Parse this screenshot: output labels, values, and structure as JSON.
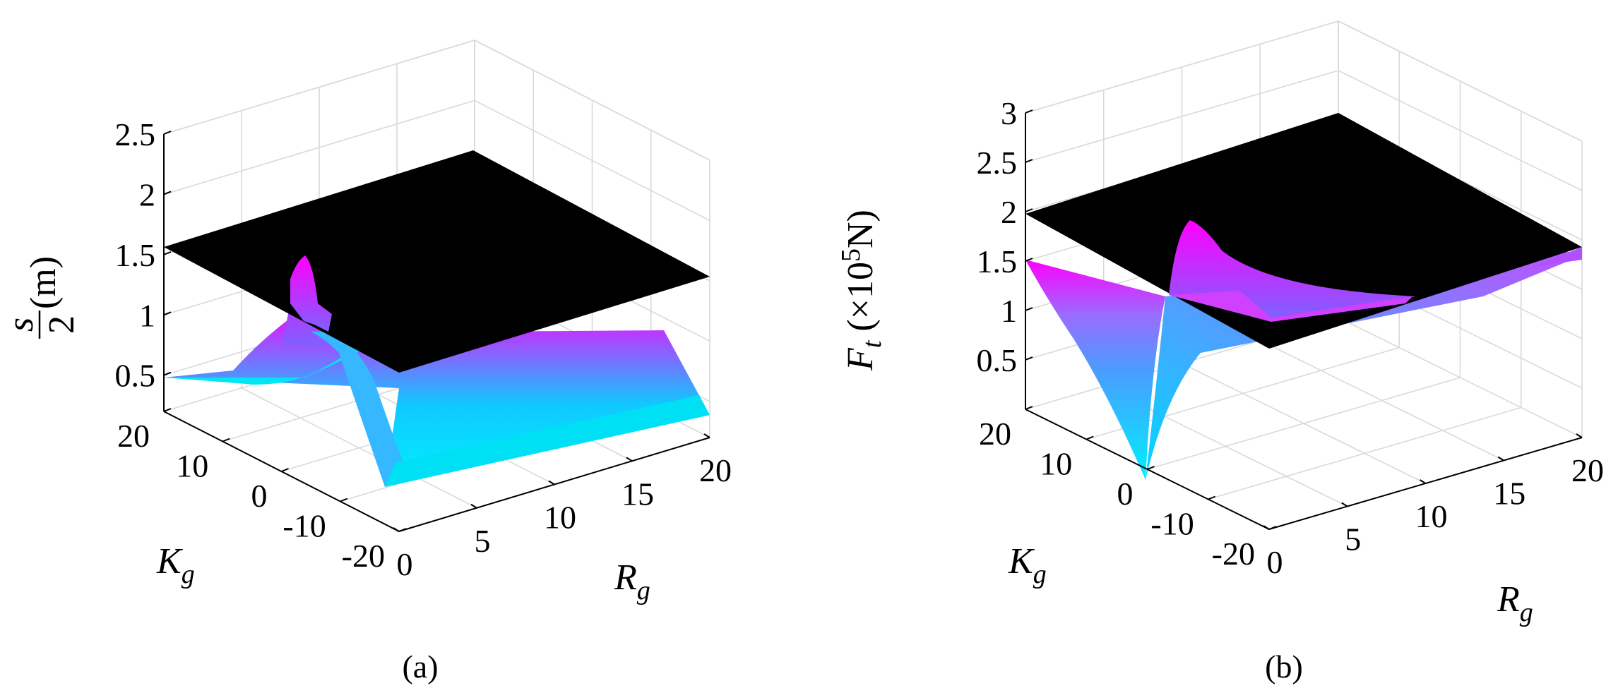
{
  "chart_data": [
    {
      "id": "a",
      "type": "surface3d",
      "caption": "(a)",
      "zlabel_fraction": {
        "numerator": "s",
        "denominator": "2"
      },
      "zlabel_unit": "(m)",
      "xlabel": {
        "main": "R",
        "sub": "g"
      },
      "ylabel": {
        "main": "K",
        "sub": "g"
      },
      "xlim": [
        0,
        20
      ],
      "ylim": [
        -20,
        20
      ],
      "zlim": [
        0.2,
        2.5
      ],
      "x_ticks": [
        "0",
        "5",
        "10",
        "15",
        "20"
      ],
      "y_ticks": [
        "-20",
        "-10",
        "0",
        "10",
        "20"
      ],
      "z_ticks": [
        "0.5",
        "1",
        "1.5",
        "2",
        "2.5"
      ],
      "plane": {
        "z": 1.5,
        "color": "#000000"
      },
      "surface": {
        "colormap": [
          "#00f5ff",
          "#ff00ff"
        ],
        "corners": {
          "R0_Km20": 0.2,
          "R20_Km20": 0.2,
          "R20_K20": 0.2,
          "R0_K20": 0.35
        },
        "peak": {
          "R": 0.5,
          "K": 0,
          "z": 1.5
        }
      },
      "grid": true
    },
    {
      "id": "b",
      "type": "surface3d",
      "caption": "(b)",
      "zlabel": {
        "main": "F",
        "sub": "t",
        "unit_pre": " (×10",
        "unit_exp": "5",
        "unit_post": "N)"
      },
      "xlabel": {
        "main": "R",
        "sub": "g"
      },
      "ylabel": {
        "main": "K",
        "sub": "g"
      },
      "xlim": [
        0,
        20
      ],
      "ylim": [
        -20,
        20
      ],
      "zlim": [
        0,
        3
      ],
      "x_ticks": [
        "0",
        "5",
        "10",
        "15",
        "20"
      ],
      "y_ticks": [
        "-20",
        "-10",
        "0",
        "10",
        "20"
      ],
      "z_ticks": [
        "0.5",
        "1",
        "1.5",
        "2",
        "2.5",
        "3"
      ],
      "plane": {
        "z": 2,
        "color": "#000000"
      },
      "surface": {
        "colormap": [
          "#00f5ff",
          "#ff00ff"
        ],
        "corners": {
          "R0_Km20": 1.55,
          "R20_Km20": 1.55,
          "R20_K20": 1.55,
          "R0_K20": 1.55
        },
        "trough": {
          "R": 0,
          "K": 0,
          "z": 0
        },
        "ridge_peak": {
          "R": 1,
          "K": 0,
          "z": 2.6
        }
      },
      "grid": true
    }
  ]
}
